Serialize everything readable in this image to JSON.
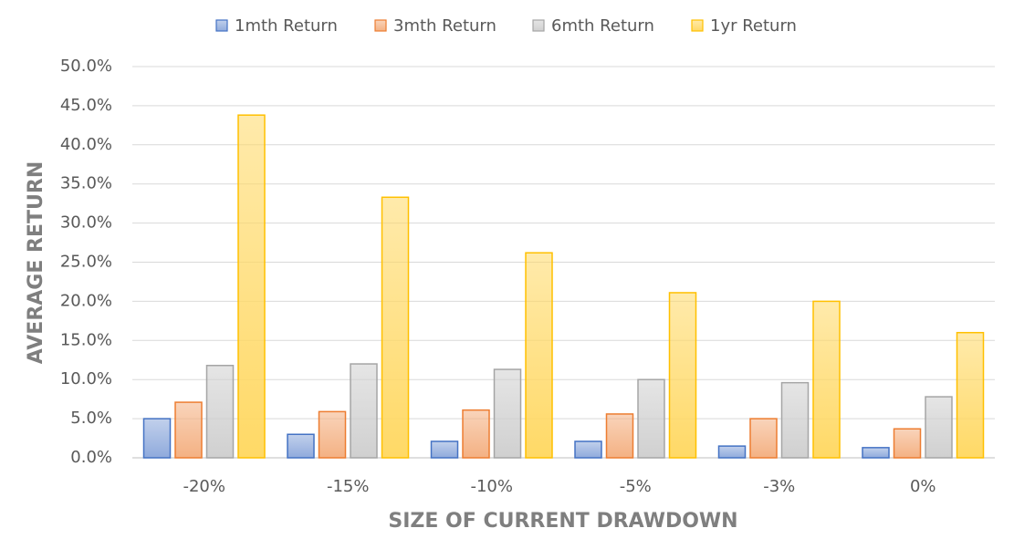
{
  "chart_data": {
    "type": "bar",
    "x_label": "SIZE OF CURRENT DRAWDOWN",
    "y_label": "AVERAGE RETURN",
    "categories": [
      "-20%",
      "-15%",
      "-10%",
      "-5%",
      "-3%",
      "0%"
    ],
    "series": [
      {
        "name": "1mth Return",
        "color": "#8faadc",
        "edgecolor": "#4472c4",
        "values": [
          5.0,
          3.0,
          2.1,
          2.1,
          1.5,
          1.3
        ]
      },
      {
        "name": "3mth Return",
        "color": "#f4b183",
        "edgecolor": "#ed7d31",
        "values": [
          7.1,
          5.9,
          6.1,
          5.6,
          5.0,
          3.7
        ]
      },
      {
        "name": "6mth Return",
        "color": "#d0d0d0",
        "edgecolor": "#a5a5a5",
        "values": [
          11.8,
          12.0,
          11.3,
          10.0,
          9.6,
          7.8
        ]
      },
      {
        "name": "1yr Return",
        "color": "#ffd966",
        "edgecolor": "#ffc000",
        "values": [
          43.8,
          33.3,
          26.2,
          21.1,
          20.0,
          16.0
        ]
      }
    ],
    "ylim": [
      0,
      50
    ],
    "yticks": [
      {
        "value": 0,
        "label": "0.0%"
      },
      {
        "value": 5,
        "label": "5.0%"
      },
      {
        "value": 10,
        "label": "10.0%"
      },
      {
        "value": 15,
        "label": "15.0%"
      },
      {
        "value": 20,
        "label": "20.0%"
      },
      {
        "value": 25,
        "label": "25.0%"
      },
      {
        "value": 30,
        "label": "30.0%"
      },
      {
        "value": 35,
        "label": "35.0%"
      },
      {
        "value": 40,
        "label": "40.0%"
      },
      {
        "value": 45,
        "label": "45.0%"
      },
      {
        "value": 50,
        "label": "50.0%"
      }
    ],
    "grid": true,
    "legend": "top"
  }
}
